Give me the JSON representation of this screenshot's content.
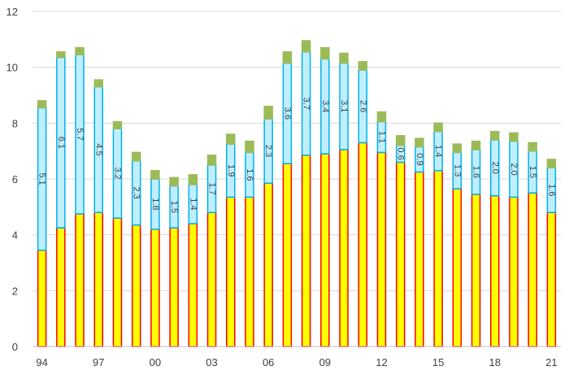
{
  "chart_data": {
    "type": "bar",
    "stacked": true,
    "title": "",
    "xlabel": "",
    "ylabel": "",
    "ylim": [
      0,
      12
    ],
    "yticks": [
      0,
      2,
      4,
      6,
      8,
      10,
      12
    ],
    "grid": "horizontal",
    "legend": "none",
    "categories": [
      "94",
      "95",
      "96",
      "97",
      "98",
      "99",
      "00",
      "01",
      "02",
      "03",
      "04",
      "05",
      "06",
      "07",
      "08",
      "09",
      "10",
      "11",
      "12",
      "13",
      "14",
      "15",
      "16",
      "17",
      "18",
      "19",
      "20",
      "21"
    ],
    "x_tick_labels": [
      "94",
      "",
      "",
      "97",
      "",
      "",
      "00",
      "",
      "",
      "03",
      "",
      "",
      "06",
      "",
      "",
      "09",
      "",
      "",
      "12",
      "",
      "",
      "15",
      "",
      "",
      "18",
      "",
      "",
      "21"
    ],
    "series": [
      {
        "color": "#ffff00",
        "edge": "#ff0000",
        "values": [
          3.45,
          4.25,
          4.75,
          4.8,
          4.6,
          4.35,
          4.2,
          4.25,
          4.4,
          4.8,
          5.35,
          5.35,
          5.85,
          6.55,
          6.85,
          6.9,
          7.05,
          7.3,
          6.95,
          6.6,
          6.25,
          6.3,
          5.65,
          5.45,
          5.4,
          5.35,
          5.5,
          4.8
        ]
      },
      {
        "color": "#bfefff",
        "edge": "#00b0f0",
        "values": [
          5.1,
          6.1,
          5.7,
          4.5,
          3.2,
          2.3,
          1.8,
          1.5,
          1.4,
          1.7,
          1.9,
          1.6,
          2.3,
          3.6,
          3.7,
          3.4,
          3.1,
          2.6,
          1.1,
          0.6,
          0.9,
          1.4,
          1.3,
          1.6,
          2.0,
          2.0,
          1.5,
          1.6
        ],
        "data_labels": [
          "5.1",
          "6.1",
          "5.7",
          "4.5",
          "3.2",
          "2.3",
          "1.8",
          "1.5",
          "1.4",
          "1.7",
          "1.9",
          "1.6",
          "2.3",
          "3.6",
          "3.7",
          "3.4",
          "3.1",
          "2.6",
          "1.1",
          "0.6",
          "0.9",
          "1.4",
          "1.3",
          "1.6",
          "2.0",
          "2.0",
          "1.5",
          "1.6"
        ]
      },
      {
        "color": "#9bbb59",
        "edge": "#9bbb59",
        "values": [
          0.25,
          0.2,
          0.25,
          0.25,
          0.25,
          0.3,
          0.3,
          0.3,
          0.35,
          0.35,
          0.35,
          0.4,
          0.45,
          0.4,
          0.4,
          0.4,
          0.35,
          0.3,
          0.35,
          0.35,
          0.3,
          0.3,
          0.3,
          0.3,
          0.3,
          0.3,
          0.3,
          0.3
        ]
      }
    ]
  }
}
